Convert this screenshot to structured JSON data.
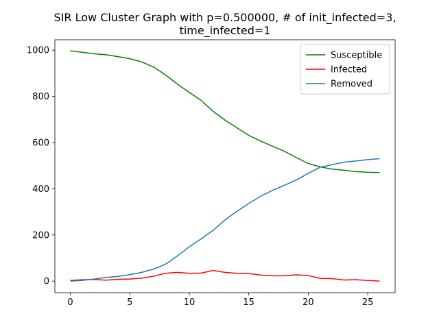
{
  "chart_data": {
    "type": "line",
    "title_lines": [
      "SIR Low Cluster Graph with p=0.500000, # of init_infected=3,",
      "time_infected=1"
    ],
    "xlabel": "",
    "ylabel": "",
    "xlim": [
      -1.3,
      27.3
    ],
    "ylim": [
      -50,
      1045
    ],
    "xticks": [
      0,
      5,
      10,
      15,
      20,
      25
    ],
    "yticks": [
      0,
      200,
      400,
      600,
      800,
      1000
    ],
    "grid": false,
    "legend_position": "top-right",
    "x": [
      0,
      1,
      2,
      3,
      4,
      5,
      6,
      7,
      8,
      9,
      10,
      11,
      12,
      13,
      14,
      15,
      16,
      17,
      18,
      19,
      20,
      21,
      22,
      23,
      24,
      25,
      26
    ],
    "series": [
      {
        "name": "Susceptible",
        "color": "#008000",
        "values": [
          997,
          991,
          984,
          980,
          972,
          963,
          949,
          927,
          893,
          853,
          817,
          782,
          735,
          697,
          664,
          631,
          606,
          584,
          562,
          535,
          509,
          495,
          485,
          480,
          474,
          471,
          470
        ]
      },
      {
        "name": "Infected",
        "color": "#ff0000",
        "values": [
          3,
          6,
          7,
          4,
          8,
          9,
          13,
          21,
          34,
          38,
          34,
          35,
          46,
          38,
          34,
          33,
          26,
          23,
          23,
          27,
          24,
          12,
          11,
          5,
          6,
          3,
          0
        ]
      },
      {
        "name": "Removed",
        "color": "#1f77b4",
        "values": [
          0,
          3,
          9,
          16,
          20,
          28,
          38,
          52,
          73,
          109,
          149,
          183,
          220,
          265,
          302,
          336,
          368,
          393,
          415,
          438,
          467,
          493,
          504,
          515,
          520,
          526,
          530
        ]
      }
    ]
  }
}
